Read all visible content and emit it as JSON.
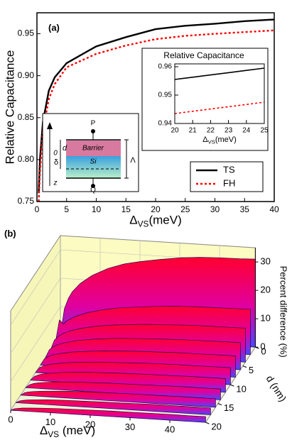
{
  "chart_data": [
    {
      "type": "line",
      "label": "(a)",
      "ylabel": "Relative Capacitance",
      "xlabel": {
        "symbol": "Δ",
        "sub": "VS",
        "unit": "(meV)"
      },
      "x": [
        0.3,
        0.5,
        1,
        2,
        3,
        5,
        10,
        15,
        20,
        25,
        30,
        35,
        40
      ],
      "series": [
        {
          "name": "TS",
          "color": "#000000",
          "linestyle": "solid",
          "values": [
            0.76,
            0.8,
            0.845,
            0.882,
            0.898,
            0.915,
            0.935,
            0.946,
            0.9555,
            0.9595,
            0.962,
            0.965,
            0.967
          ]
        },
        {
          "name": "FH",
          "color": "#ff0000",
          "linestyle": "dotted",
          "values": [
            0.75,
            0.785,
            0.835,
            0.872,
            0.89,
            0.91,
            0.926,
            0.936,
            0.9435,
            0.9475,
            0.95,
            0.952,
            0.954
          ]
        }
      ],
      "xlim": [
        0,
        40
      ],
      "xticks": [
        0,
        5,
        10,
        15,
        20,
        25,
        30,
        35,
        40
      ],
      "ylim": [
        0.75,
        0.975
      ],
      "yticks": [
        0.75,
        {
          "value": 0.8,
          "label": "0.80"
        },
        0.85,
        {
          "value": 0.9,
          "label": "0.90"
        },
        0.95
      ],
      "legend": "lower right"
    },
    {
      "type": "line",
      "title": "Relative Capacitance",
      "xlabel": {
        "symbol": "Δ",
        "sub": "VS",
        "unit": "(meV)"
      },
      "x": [
        20,
        21,
        22,
        23,
        24,
        25
      ],
      "series": [
        {
          "color": "#000000",
          "linestyle": "solid",
          "values": [
            0.9555,
            0.9563,
            0.9571,
            0.9579,
            0.9587,
            0.9595
          ]
        },
        {
          "color": "#ff0000",
          "linestyle": "dotted",
          "values": [
            0.9435,
            0.9443,
            0.9451,
            0.9459,
            0.9467,
            0.9475
          ]
        }
      ],
      "xlim": [
        20,
        25
      ],
      "xticks": [
        20,
        21,
        22,
        23,
        24,
        25
      ],
      "ylim": [
        0.94,
        0.961
      ],
      "yticks": [
        0.94,
        0.95,
        0.96
      ]
    },
    {
      "type": "waterfall3d",
      "label": "(b)",
      "xlabel": {
        "symbol": "Δ",
        "sub": "VS",
        "unit": " (meV)"
      },
      "dlabel": "d (nm)",
      "zlabel": "Percent difference (%)",
      "x": [
        0,
        1,
        2,
        3,
        5,
        8,
        12,
        16,
        20,
        25,
        30,
        35,
        40,
        45,
        49
      ],
      "series": [
        {
          "d": 0,
          "values": [
            0,
            9.3,
            13.0,
            15.5,
            18.6,
            21.7,
            24.5,
            26.4,
            27.6,
            28.8,
            29.8,
            30.4,
            30.7,
            30.8,
            31.0
          ]
        },
        {
          "d": 2,
          "values": [
            0,
            8.0,
            6.7,
            8.0,
            9.6,
            11.2,
            12.6,
            13.6,
            14.2,
            14.9,
            15.4,
            15.7,
            15.8,
            15.9,
            16.0
          ]
        },
        {
          "d": 4,
          "values": [
            0,
            3.6,
            5.0,
            6.0,
            7.2,
            8.4,
            9.5,
            10.2,
            10.7,
            11.2,
            11.5,
            11.8,
            11.9,
            11.9,
            12.0
          ]
        },
        {
          "d": 6,
          "values": [
            0,
            2.9,
            4.0,
            4.8,
            5.7,
            6.7,
            7.5,
            8.1,
            8.5,
            8.8,
            9.1,
            9.3,
            9.4,
            9.5,
            9.5
          ]
        },
        {
          "d": 8,
          "values": [
            0,
            2.3,
            3.2,
            3.8,
            4.5,
            5.3,
            5.9,
            6.4,
            6.7,
            7.0,
            7.2,
            7.4,
            7.4,
            7.5,
            7.5
          ]
        },
        {
          "d": 10,
          "values": [
            0,
            1.8,
            2.5,
            3.0,
            3.6,
            4.2,
            4.7,
            5.1,
            5.3,
            5.6,
            5.8,
            5.9,
            5.9,
            6.0,
            6.0
          ]
        },
        {
          "d": 12,
          "values": [
            0,
            1.4,
            2.0,
            2.4,
            2.9,
            3.4,
            3.8,
            4.1,
            4.3,
            4.5,
            4.6,
            4.7,
            4.8,
            4.8,
            4.8
          ]
        },
        {
          "d": 14,
          "values": [
            0,
            1.1,
            1.6,
            1.9,
            2.3,
            2.7,
            3.0,
            3.2,
            3.4,
            3.5,
            3.6,
            3.7,
            3.8,
            3.8,
            3.8
          ]
        },
        {
          "d": 16,
          "values": [
            0,
            0.9,
            1.3,
            1.5,
            1.8,
            2.1,
            2.4,
            2.6,
            2.7,
            2.8,
            2.9,
            2.9,
            3.0,
            3.0,
            3.0
          ]
        },
        {
          "d": 18,
          "values": [
            0,
            0.7,
            1.0,
            1.2,
            1.4,
            1.7,
            1.9,
            2.0,
            2.1,
            2.2,
            2.3,
            2.4,
            2.4,
            2.4,
            2.4
          ]
        },
        {
          "d": 20,
          "values": [
            0,
            0.6,
            0.8,
            1.0,
            1.2,
            1.4,
            1.6,
            1.7,
            1.8,
            1.9,
            1.9,
            2.0,
            2.0,
            2.0,
            2.0
          ]
        }
      ],
      "xlim": [
        0,
        49
      ],
      "xticks": [
        0,
        10,
        20,
        30,
        40
      ],
      "dlim": [
        0,
        20
      ],
      "dticks": [
        0,
        5,
        10,
        15,
        20
      ],
      "zlim": [
        0,
        35
      ],
      "zticks": [
        0,
        10,
        20,
        30
      ],
      "grid": true
    }
  ],
  "diagram": {
    "top_contact": "P",
    "bottom_contact": "Q",
    "barrier": "Barrier",
    "well": "Si",
    "thickness": "d",
    "offset": "δ",
    "width": "Λ",
    "origin": "0",
    "axis": "z"
  }
}
